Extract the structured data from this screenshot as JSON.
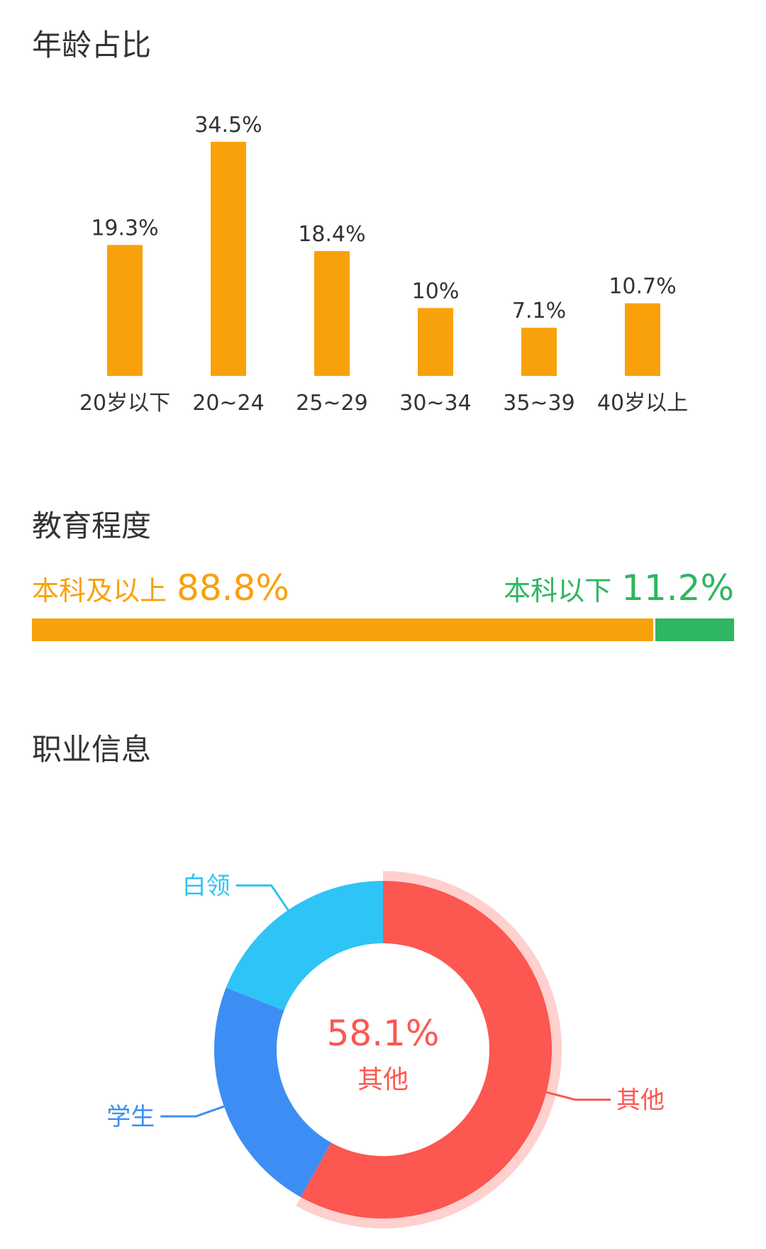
{
  "age": {
    "title": "年龄占比"
  },
  "education": {
    "title": "教育程度",
    "above": {
      "label": "本科及以上",
      "value": "88.8%",
      "fraction": 0.888,
      "color": "#f9a10a"
    },
    "below": {
      "label": "本科以下",
      "value": "11.2%",
      "fraction": 0.112,
      "color": "#2eb661"
    }
  },
  "occupation": {
    "title": "职业信息",
    "center_value": "58.1%",
    "center_label": "其他"
  },
  "chart_data": [
    {
      "type": "bar",
      "categories": [
        "20岁以下",
        "20~24",
        "25~29",
        "30~34",
        "35~39",
        "40岁以上"
      ],
      "values": [
        19.3,
        34.5,
        18.4,
        10,
        7.1,
        10.7
      ],
      "value_labels": [
        "19.3%",
        "34.5%",
        "18.4%",
        "10%",
        "7.1%",
        "10.7%"
      ],
      "title": "年龄占比",
      "xlabel": "",
      "ylabel": "",
      "ylim": [
        0,
        34.5
      ],
      "grid": false,
      "color": "#f9a10a"
    },
    {
      "type": "pie",
      "title": "职业信息",
      "donut": true,
      "slices": [
        {
          "label": "其他",
          "value": 58.1,
          "color": "#fc5750",
          "highlighted": true
        },
        {
          "label": "学生",
          "value": 22.9,
          "color": "#3d8ef4"
        },
        {
          "label": "白领",
          "value": 19.0,
          "color": "#2fc4f6"
        }
      ]
    }
  ]
}
